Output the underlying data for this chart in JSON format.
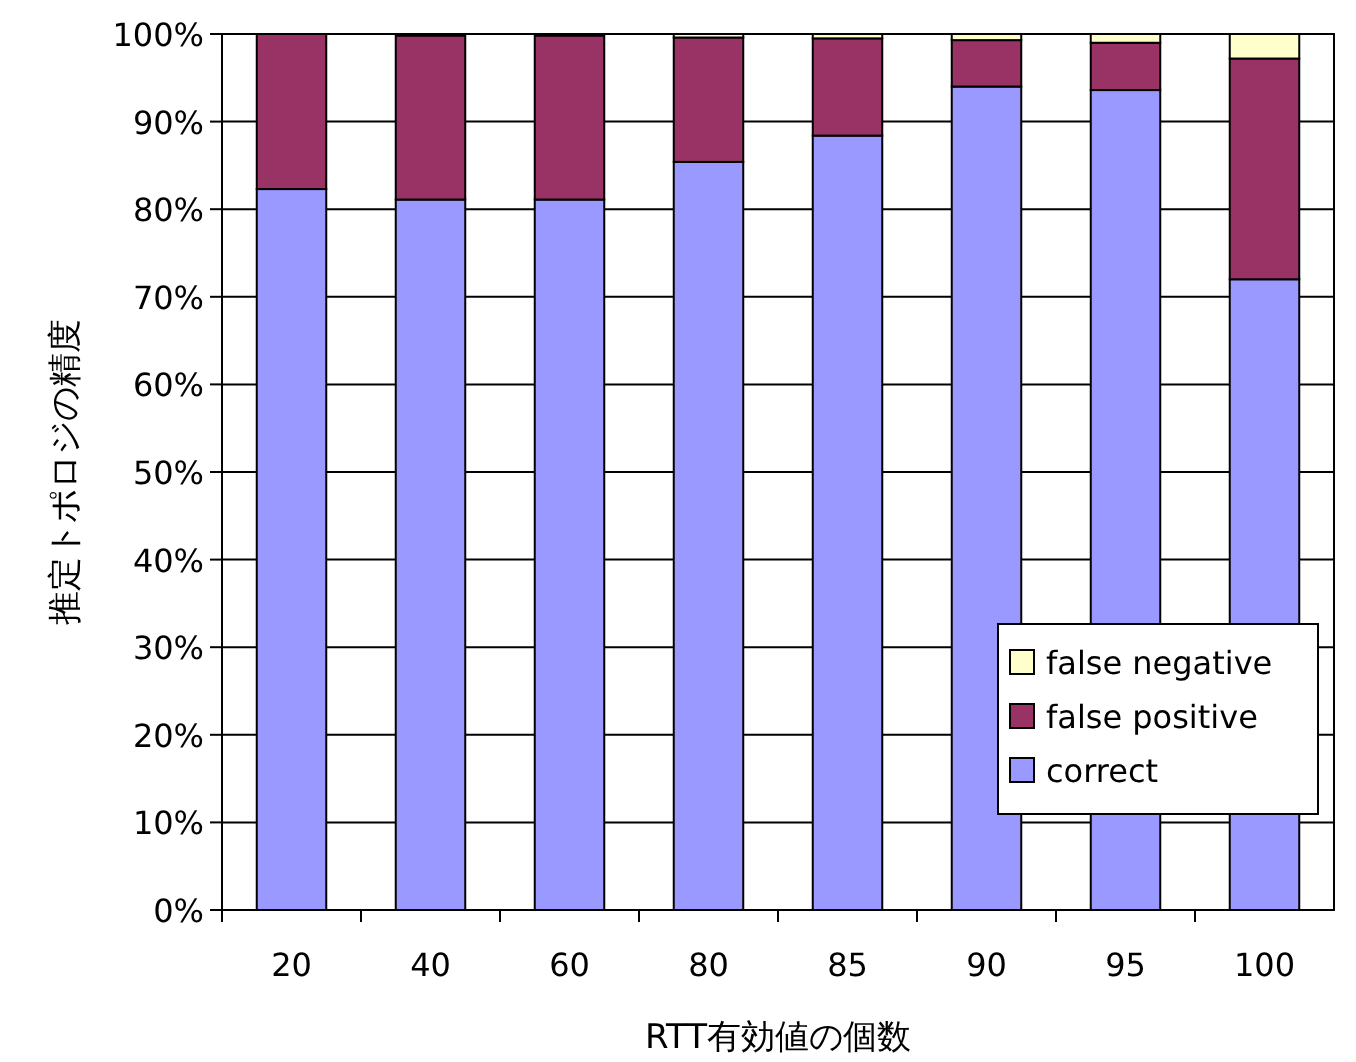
{
  "chart_data": {
    "type": "bar",
    "stacked": true,
    "xlabel": "RTT有効値の個数",
    "ylabel": "推定トポロジの精度",
    "categories": [
      "20",
      "40",
      "60",
      "80",
      "85",
      "90",
      "95",
      "100"
    ],
    "series": [
      {
        "name": "correct",
        "color": "#9999ff",
        "values": [
          82.3,
          81.1,
          81.1,
          85.4,
          88.4,
          94.0,
          93.6,
          72.0
        ]
      },
      {
        "name": "false positive",
        "color": "#993366",
        "values": [
          17.7,
          18.7,
          18.7,
          14.2,
          11.1,
          5.3,
          5.4,
          25.2
        ]
      },
      {
        "name": "false negative",
        "color": "#ffffcc",
        "values": [
          0,
          null,
          null,
          0.4,
          0.5,
          0.7,
          1.0,
          2.8
        ]
      }
    ],
    "ylim": [
      0,
      100
    ],
    "yticks": [
      {
        "value": 0,
        "label": "0%"
      },
      {
        "value": 10,
        "label": "10%"
      },
      {
        "value": 20,
        "label": "20%"
      },
      {
        "value": 30,
        "label": "30%"
      },
      {
        "value": 40,
        "label": "40%"
      },
      {
        "value": 50,
        "label": "50%"
      },
      {
        "value": 60,
        "label": "60%"
      },
      {
        "value": 70,
        "label": "70%"
      },
      {
        "value": 80,
        "label": "80%"
      },
      {
        "value": 90,
        "label": "90%"
      },
      {
        "value": 100,
        "label": "100%"
      }
    ],
    "grid": "y",
    "legend": "bottom right"
  }
}
